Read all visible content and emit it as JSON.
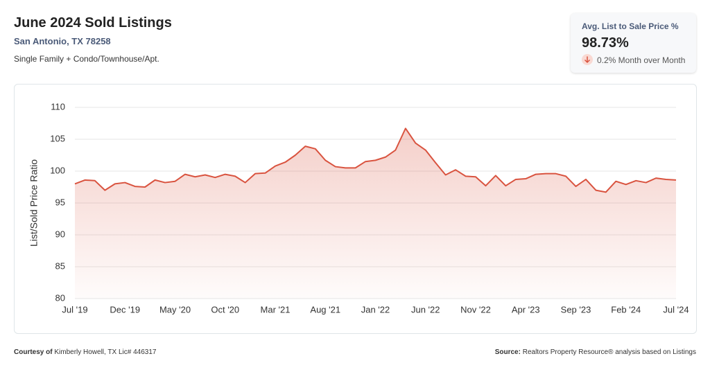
{
  "header": {
    "title": "June 2024 Sold Listings",
    "location": "San Antonio, TX 78258",
    "property_types": "Single Family + Condo/Townhouse/Apt."
  },
  "kpi": {
    "label": "Avg. List to Sale Price %",
    "value": "98.73%",
    "change": "0.2% Month over Month"
  },
  "footer": {
    "courtesy_label": "Courtesy of",
    "courtesy": "Kimberly Howell, TX Lic# 446317",
    "source_label": "Source:",
    "source": "Realtors Property Resource® analysis based on Listings"
  },
  "chart_data": {
    "type": "area",
    "y_label": "List/Sold Price Ratio",
    "categories": [
      "Jul '19",
      null,
      null,
      null,
      null,
      "Dec '19",
      null,
      null,
      null,
      null,
      "May '20",
      null,
      null,
      null,
      null,
      "Oct '20",
      null,
      null,
      null,
      null,
      "Mar '21",
      null,
      null,
      null,
      null,
      "Aug '21",
      null,
      null,
      null,
      null,
      "Jan '22",
      null,
      null,
      null,
      null,
      "Jun '22",
      null,
      null,
      null,
      null,
      "Nov '22",
      null,
      null,
      null,
      null,
      "Apr '23",
      null,
      null,
      null,
      null,
      "Sep '23",
      null,
      null,
      null,
      null,
      "Feb '24",
      null,
      null,
      null,
      null,
      "Jul '24"
    ],
    "series": [
      {
        "color": "#d9533f",
        "values": [
          98.0,
          98.6,
          98.5,
          97.0,
          98.0,
          98.2,
          97.6,
          97.5,
          98.6,
          98.2,
          98.4,
          99.5,
          99.1,
          99.4,
          99.0,
          99.5,
          99.2,
          98.2,
          99.6,
          99.7,
          100.8,
          101.4,
          102.5,
          103.9,
          103.5,
          101.7,
          100.7,
          100.5,
          100.5,
          101.5,
          101.7,
          102.2,
          103.3,
          106.7,
          104.4,
          103.3,
          101.3,
          99.4,
          100.2,
          99.2,
          99.1,
          97.7,
          99.3,
          97.7,
          98.7,
          98.8,
          99.5,
          99.6,
          99.6,
          99.2,
          97.6,
          98.7,
          97.0,
          96.7,
          98.4,
          97.9,
          98.5,
          98.2,
          98.9,
          98.7,
          98.6
        ]
      }
    ],
    "ylim": [
      80,
      110
    ],
    "yticks": [
      80,
      85,
      90,
      95,
      100,
      105,
      110
    ],
    "grid": true
  }
}
